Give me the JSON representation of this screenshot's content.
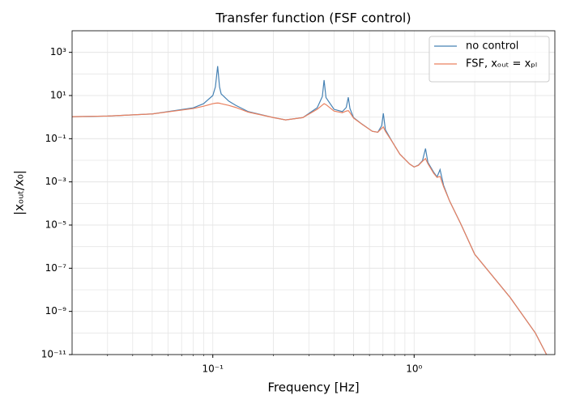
{
  "chart_data": {
    "type": "line",
    "title": "Transfer function (FSF control)",
    "x_label": "Frequency [Hz]",
    "y_label": "|xₒᵤₜ/x₀|",
    "x_scale": "log",
    "y_scale": "log",
    "grid": true,
    "legend": "upper right",
    "xlim": [
      0.02,
      5
    ],
    "ylim": [
      1e-11,
      10000
    ],
    "xticks": [
      {
        "value": 0.1,
        "label": "10⁻¹"
      },
      {
        "value": 1,
        "label": "10⁰"
      }
    ],
    "yticks": [
      {
        "value": 1e-11,
        "label": "10⁻¹¹"
      },
      {
        "value": 1e-09,
        "label": "10⁻⁹"
      },
      {
        "value": 1e-07,
        "label": "10⁻⁷"
      },
      {
        "value": 1e-05,
        "label": "10⁻⁵"
      },
      {
        "value": 0.001,
        "label": "10⁻³"
      },
      {
        "value": 0.1,
        "label": "10⁻¹"
      },
      {
        "value": 10,
        "label": "10¹"
      },
      {
        "value": 1000,
        "label": "10³"
      }
    ],
    "x": [
      0.02,
      0.03,
      0.05,
      0.08,
      0.09,
      0.1,
      0.103,
      0.1057,
      0.108,
      0.11,
      0.12,
      0.13,
      0.15,
      0.2,
      0.23,
      0.28,
      0.33,
      0.35,
      0.357,
      0.365,
      0.4,
      0.44,
      0.46,
      0.471,
      0.48,
      0.5,
      0.55,
      0.62,
      0.66,
      0.69,
      0.703,
      0.72,
      0.78,
      0.85,
      0.95,
      1.0,
      1.05,
      1.1,
      1.139,
      1.17,
      1.25,
      1.3,
      1.345,
      1.4,
      1.5,
      1.7,
      2.0,
      3.0,
      4.0,
      4.5,
      5.0
    ],
    "series": [
      {
        "name": "no control",
        "color": "#4682b4",
        "values": [
          1.05,
          1.12,
          1.4,
          2.7,
          4.2,
          10,
          25,
          230,
          25,
          12,
          5.5,
          3.5,
          1.8,
          0.95,
          0.74,
          0.95,
          2.7,
          9,
          52,
          8,
          2.3,
          1.8,
          2.8,
          8.3,
          2.5,
          0.95,
          0.48,
          0.22,
          0.2,
          0.4,
          1.5,
          0.26,
          0.07,
          0.019,
          0.0067,
          0.0049,
          0.006,
          0.0095,
          0.035,
          0.008,
          0.0028,
          0.0017,
          0.0037,
          0.0007,
          0.00013,
          1.2e-05,
          4.4e-07,
          4.4e-09,
          1e-10,
          1.2e-11,
          2e-12
        ]
      },
      {
        "name": "FSF, xₒᵤₜ = xₚₗ",
        "color": "#e9805f",
        "values": [
          1.05,
          1.12,
          1.4,
          2.5,
          3.2,
          4.2,
          4.4,
          4.5,
          4.4,
          4.2,
          3.5,
          2.8,
          1.7,
          0.95,
          0.74,
          0.95,
          2.3,
          3.6,
          4.2,
          3.8,
          1.9,
          1.6,
          1.9,
          2.0,
          1.6,
          0.9,
          0.47,
          0.22,
          0.2,
          0.3,
          0.35,
          0.22,
          0.07,
          0.019,
          0.0067,
          0.0049,
          0.0058,
          0.009,
          0.012,
          0.007,
          0.0025,
          0.0016,
          0.0018,
          0.0006,
          0.00013,
          1.2e-05,
          4.4e-07,
          4.4e-09,
          1e-10,
          1.2e-11,
          2e-12
        ]
      }
    ]
  }
}
